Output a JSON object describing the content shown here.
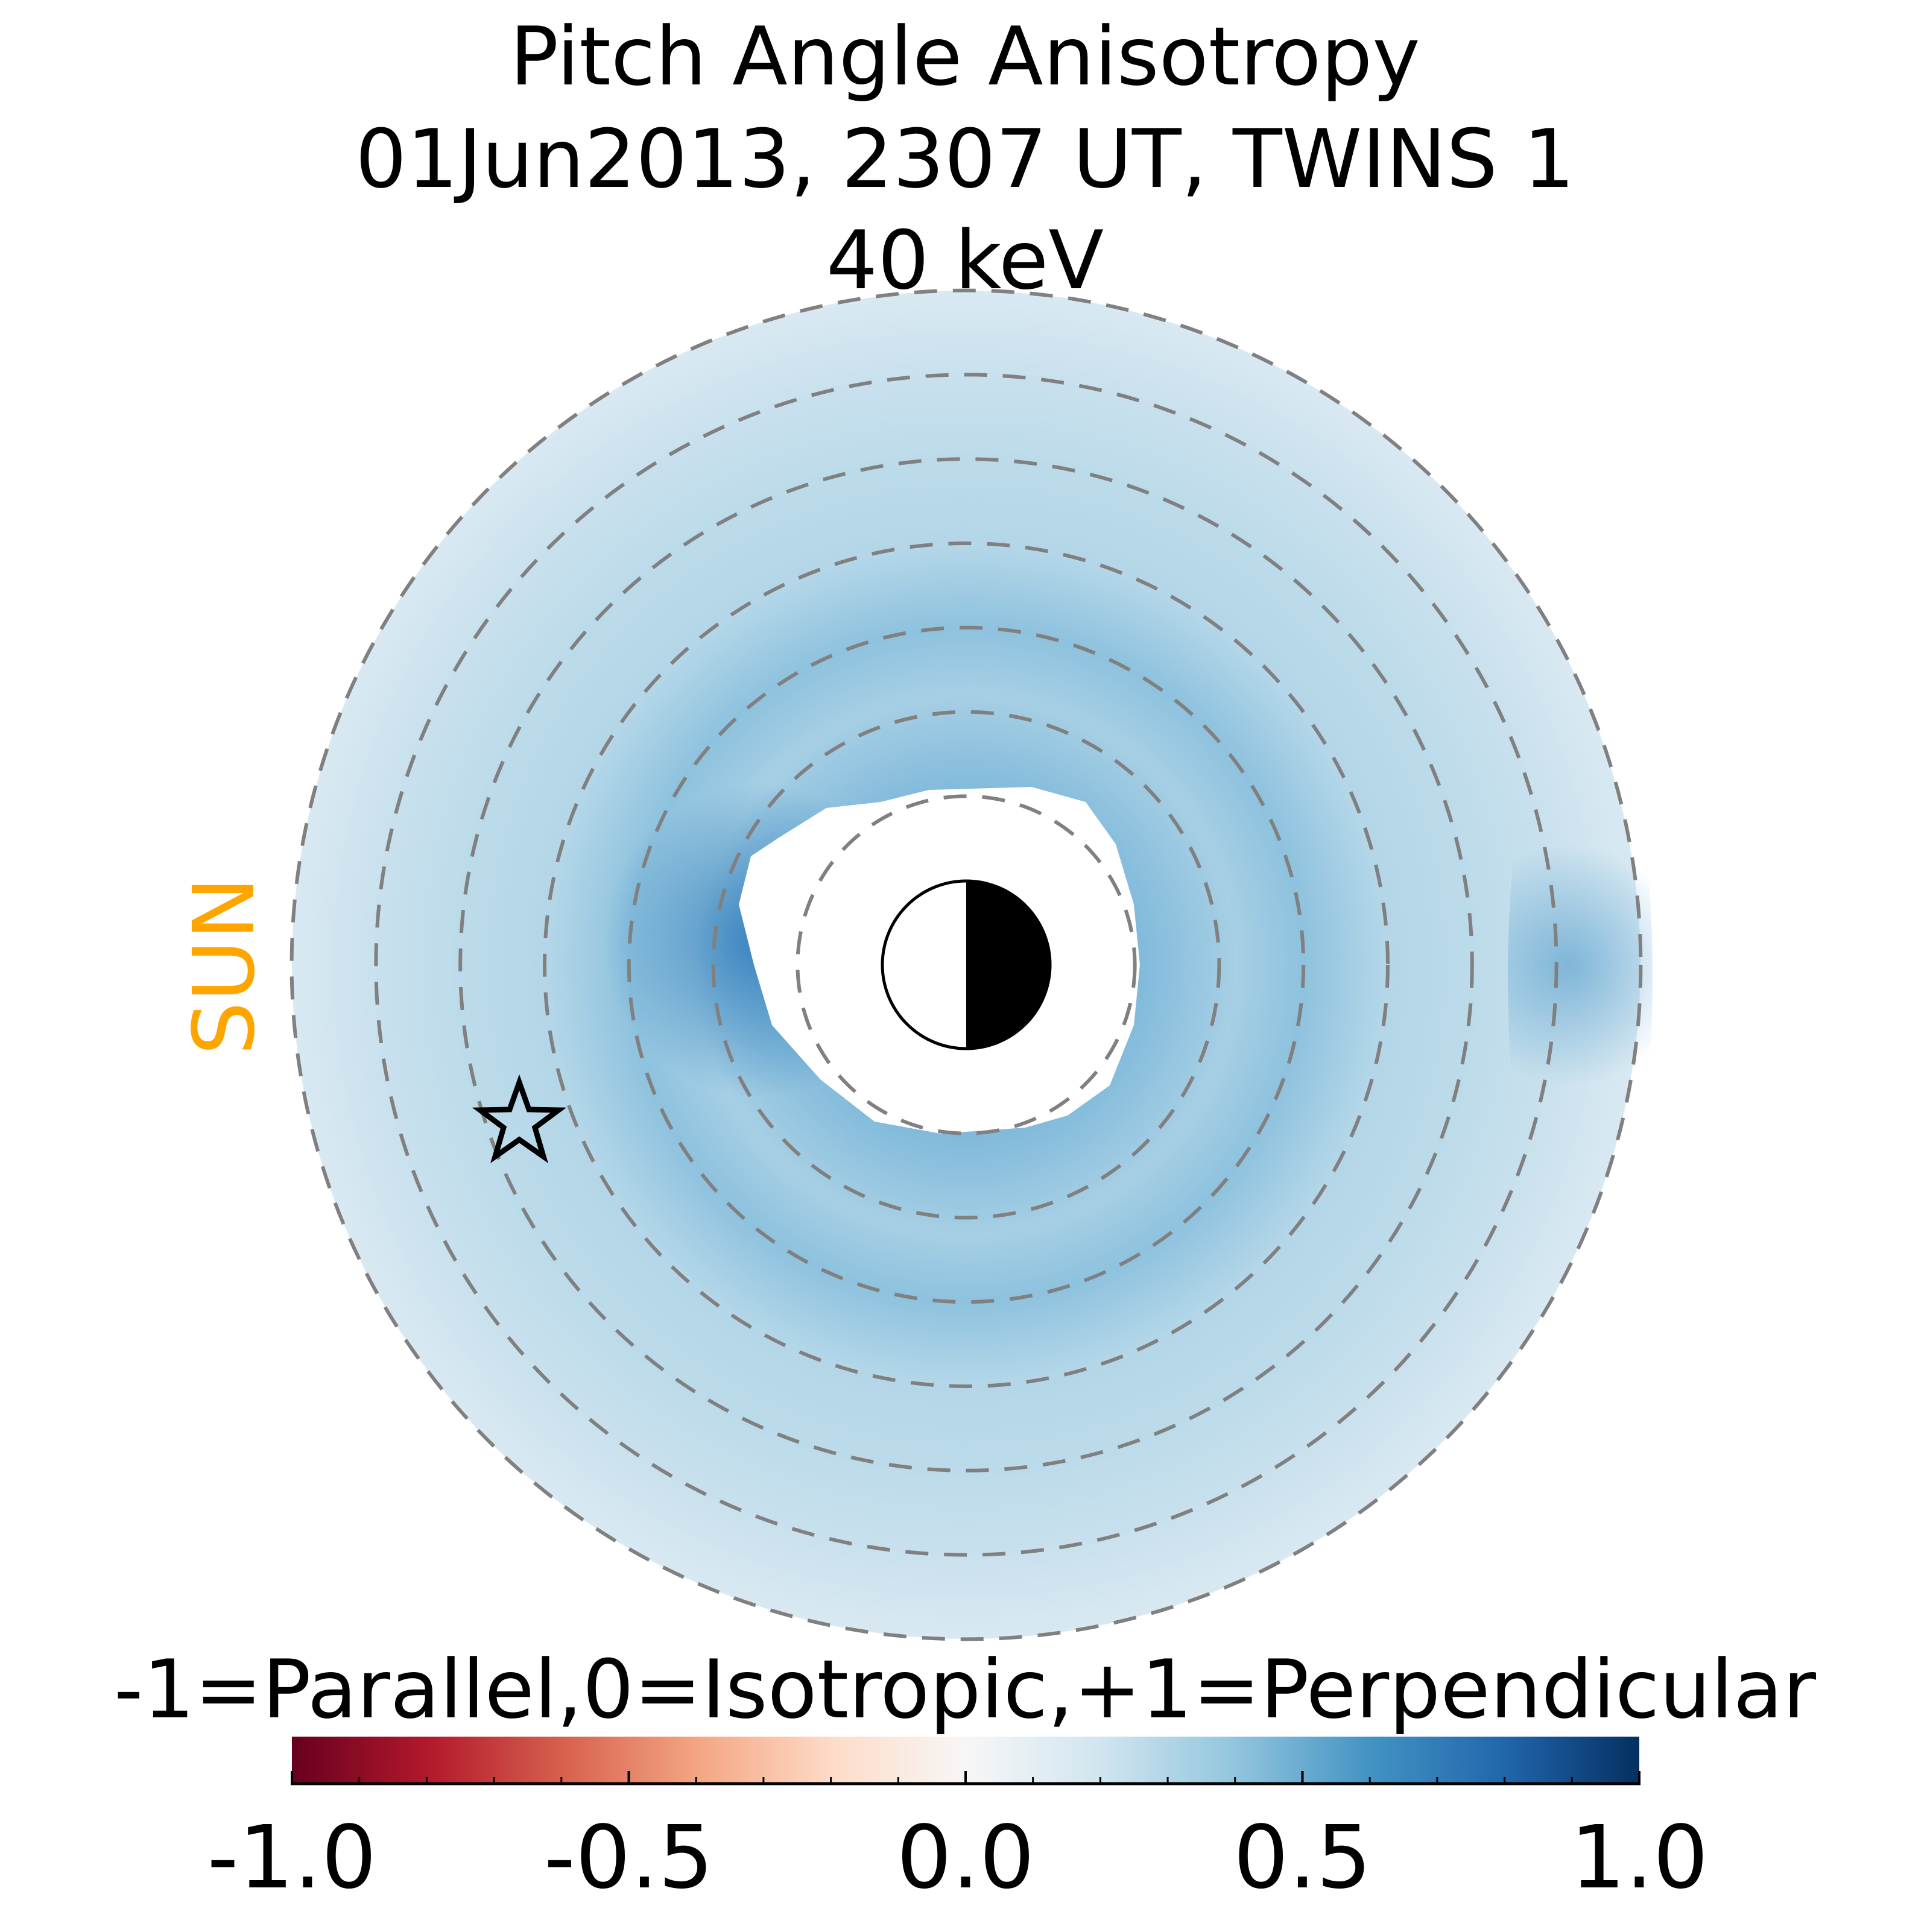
{
  "chart_data": {
    "type": "heatmap",
    "title_lines": [
      "Pitch Angle Anisotropy",
      "01Jun2013, 2307 UT,  TWINS 1",
      "40 keV"
    ],
    "projection": "polar equatorial map, radial rings every 1 Earth radius from 2 to 8",
    "ring_radii_re": [
      2,
      3,
      4,
      5,
      6,
      7,
      8
    ],
    "sun_label": "SUN",
    "sun_color": "#FFA500",
    "colorbar": {
      "label": "-1=Parallel,0=Isotropic,+1=Perpendicular",
      "colormap": "RdBu",
      "range": [
        -1.0,
        1.0
      ],
      "ticks": [
        -1.0,
        -0.5,
        0.0,
        0.5,
        1.0
      ],
      "tick_labels": [
        "-1.0",
        "-0.5",
        "0.0",
        "0.5",
        "1.0"
      ],
      "minor_tick_step": 0.1
    },
    "field_summary": {
      "outer_region_value": 0.15,
      "mid_ring_value": 0.4,
      "inner_dusk_peak_value": 0.7,
      "inner_boundary_re": 2
    },
    "colors": {
      "ring_dash": "#808080",
      "star": "#000000"
    }
  }
}
